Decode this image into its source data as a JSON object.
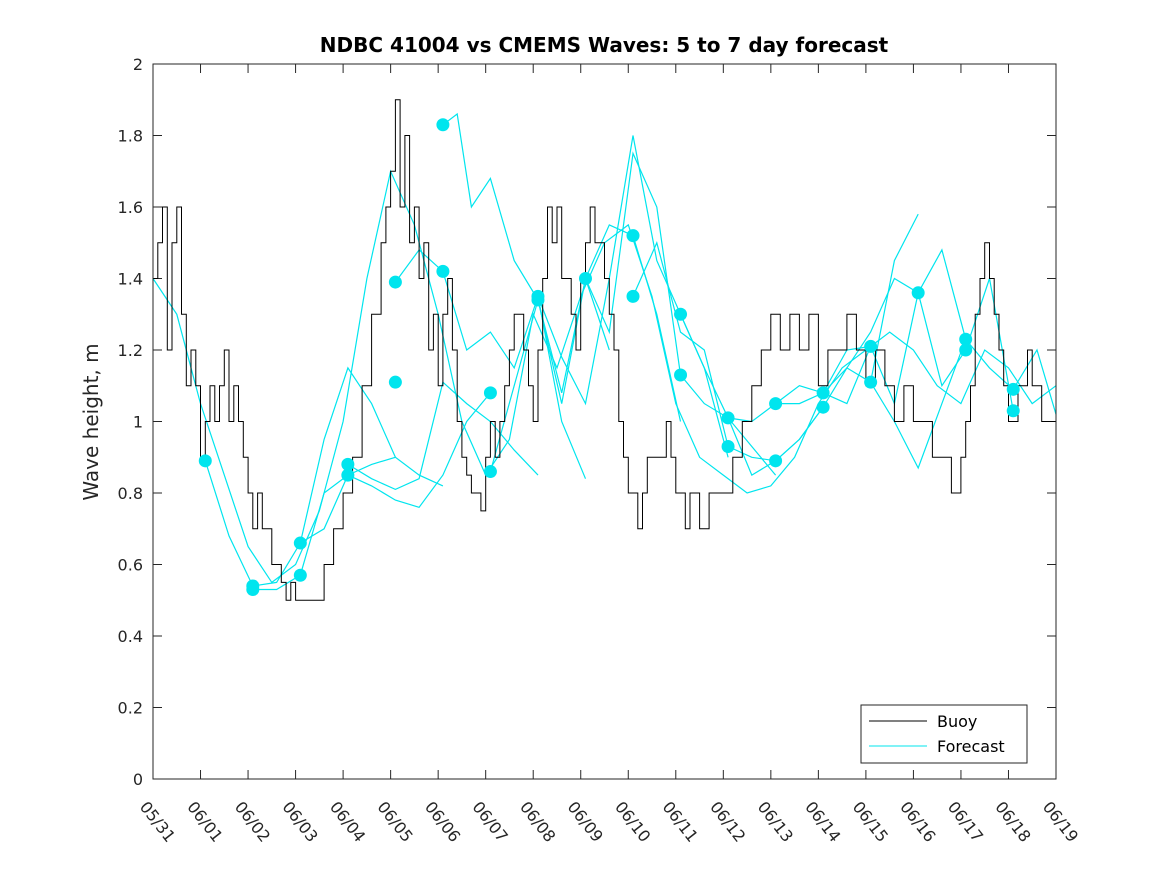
{
  "chart_data": {
    "type": "line",
    "title": "NDBC 41004 vs CMEMS Waves: 5 to 7 day forecast",
    "xlabel": "",
    "ylabel": "Wave height, m",
    "xlim": [
      0,
      19
    ],
    "ylim": [
      0,
      2
    ],
    "x_tick_labels": [
      "05/31",
      "06/01",
      "06/02",
      "06/03",
      "06/04",
      "06/05",
      "06/06",
      "06/07",
      "06/08",
      "06/09",
      "06/10",
      "06/11",
      "06/12",
      "06/13",
      "06/14",
      "06/15",
      "06/16",
      "06/17",
      "06/18",
      "06/19"
    ],
    "y_ticks": [
      0,
      0.2,
      0.4,
      0.6,
      0.8,
      1,
      1.2,
      1.4,
      1.6,
      1.8,
      2
    ],
    "y_tick_labels": [
      "0",
      "0.2",
      "0.4",
      "0.6",
      "0.8",
      "1",
      "1.2",
      "1.4",
      "1.6",
      "1.8",
      "2"
    ],
    "x_unit": "days since 05/31",
    "grid": false,
    "legend_position": "bottom-right",
    "legend": [
      "Buoy",
      "Forecast"
    ],
    "colors": {
      "buoy": "#000000",
      "forecast": "#00e5ee",
      "axis": "#262626"
    },
    "buoy": {
      "name": "Buoy",
      "x": [
        0,
        0.1,
        0.2,
        0.3,
        0.4,
        0.5,
        0.6,
        0.7,
        0.8,
        0.9,
        1.0,
        1.1,
        1.2,
        1.3,
        1.4,
        1.5,
        1.6,
        1.7,
        1.8,
        1.9,
        2.0,
        2.1,
        2.2,
        2.3,
        2.4,
        2.5,
        2.6,
        2.7,
        2.8,
        2.9,
        3.0,
        3.2,
        3.4,
        3.6,
        3.8,
        4.0,
        4.2,
        4.4,
        4.6,
        4.8,
        4.9,
        5.0,
        5.1,
        5.2,
        5.3,
        5.4,
        5.5,
        5.6,
        5.7,
        5.8,
        5.9,
        6.0,
        6.1,
        6.2,
        6.3,
        6.4,
        6.5,
        6.6,
        6.7,
        6.8,
        6.9,
        7.0,
        7.1,
        7.2,
        7.3,
        7.4,
        7.5,
        7.6,
        7.7,
        7.8,
        7.9,
        8.0,
        8.1,
        8.2,
        8.3,
        8.4,
        8.5,
        8.6,
        8.7,
        8.8,
        8.9,
        9.0,
        9.1,
        9.2,
        9.3,
        9.4,
        9.5,
        9.6,
        9.7,
        9.8,
        9.9,
        10.0,
        10.1,
        10.2,
        10.3,
        10.4,
        10.5,
        10.6,
        10.7,
        10.8,
        10.9,
        11.0,
        11.1,
        11.2,
        11.3,
        11.4,
        11.5,
        11.6,
        11.7,
        11.8,
        11.9,
        12.0,
        12.2,
        12.4,
        12.6,
        12.8,
        13.0,
        13.2,
        13.4,
        13.6,
        13.8,
        14.0,
        14.2,
        14.4,
        14.6,
        14.8,
        15.0,
        15.2,
        15.4,
        15.6,
        15.8,
        16.0,
        16.2,
        16.4,
        16.6,
        16.8,
        17.0,
        17.1,
        17.2,
        17.3,
        17.4,
        17.5,
        17.6,
        17.7,
        17.8,
        17.9,
        18.0,
        18.1,
        18.2,
        18.3,
        18.4,
        18.5,
        18.6,
        18.7,
        18.8,
        18.9,
        19.0
      ],
      "y": [
        1.4,
        1.5,
        1.6,
        1.2,
        1.5,
        1.6,
        1.3,
        1.1,
        1.2,
        1.1,
        0.9,
        1.0,
        1.1,
        1.0,
        1.1,
        1.2,
        1.0,
        1.1,
        1.0,
        0.9,
        0.8,
        0.7,
        0.8,
        0.7,
        0.7,
        0.6,
        0.6,
        0.55,
        0.5,
        0.55,
        0.5,
        0.5,
        0.5,
        0.6,
        0.7,
        0.8,
        0.9,
        1.1,
        1.3,
        1.5,
        1.6,
        1.7,
        1.9,
        1.6,
        1.8,
        1.5,
        1.6,
        1.4,
        1.5,
        1.2,
        1.3,
        1.1,
        1.3,
        1.4,
        1.2,
        1.0,
        0.9,
        0.85,
        0.8,
        0.8,
        0.75,
        0.9,
        1.0,
        0.9,
        1.0,
        1.1,
        1.2,
        1.3,
        1.3,
        1.2,
        1.1,
        1.0,
        1.2,
        1.4,
        1.6,
        1.5,
        1.6,
        1.4,
        1.4,
        1.3,
        1.2,
        1.4,
        1.5,
        1.6,
        1.5,
        1.5,
        1.4,
        1.3,
        1.2,
        1.0,
        0.9,
        0.8,
        0.8,
        0.7,
        0.8,
        0.9,
        0.9,
        0.9,
        0.9,
        1.0,
        0.9,
        0.8,
        0.8,
        0.7,
        0.8,
        0.8,
        0.7,
        0.7,
        0.8,
        0.8,
        0.8,
        0.8,
        0.9,
        1.0,
        1.1,
        1.2,
        1.3,
        1.2,
        1.3,
        1.2,
        1.3,
        1.1,
        1.2,
        1.2,
        1.3,
        1.2,
        1.1,
        1.2,
        1.1,
        1.0,
        1.1,
        1.0,
        1.0,
        0.9,
        0.9,
        0.8,
        0.9,
        1.0,
        1.1,
        1.3,
        1.4,
        1.5,
        1.4,
        1.3,
        1.2,
        1.1,
        1.0,
        1.0,
        1.1,
        1.1,
        1.2,
        1.1,
        1.1,
        1.0,
        1.0,
        1.0,
        1.0
      ]
    },
    "forecast": [
      {
        "name": "Forecast",
        "x": [
          0,
          0.5,
          1.0,
          1.5,
          2.0,
          2.5,
          3.0,
          3.5,
          4.0,
          4.5,
          5.0,
          5.5,
          6.0,
          6.5,
          7.0,
          7.5,
          8.0,
          8.5,
          9.0,
          9.5,
          10.0,
          10.5,
          11.0,
          11.5,
          12.0,
          12.5,
          13.0,
          13.5,
          14.0,
          14.5,
          15.0,
          15.5,
          16.0,
          16.5,
          17.0,
          17.5,
          18.0,
          18.5,
          19.0
        ],
        "y": [
          1.4,
          1.3,
          1.05,
          0.85,
          0.65,
          0.55,
          0.6,
          0.75,
          1.0,
          1.4,
          1.7,
          1.55,
          1.3,
          1.0,
          0.85,
          0.95,
          1.3,
          1.15,
          1.35,
          1.5,
          1.55,
          1.35,
          1.05,
          0.9,
          0.85,
          0.8,
          0.82,
          0.9,
          1.05,
          1.15,
          1.2,
          1.25,
          1.2,
          1.1,
          1.05,
          1.2,
          1.15,
          1.05,
          1.1
        ]
      },
      {
        "name": "Forecast",
        "x": [
          1.1,
          1.6,
          2.1,
          2.6,
          3.1,
          3.6,
          4.1,
          4.6,
          5.1
        ],
        "y": [
          0.89,
          0.68,
          0.54,
          0.55,
          0.66,
          0.95,
          1.15,
          1.05,
          0.9
        ]
      },
      {
        "name": "Forecast",
        "x": [
          2.1,
          2.6,
          3.1,
          3.6,
          4.1,
          4.6,
          5.1,
          5.6,
          6.1
        ],
        "y": [
          0.53,
          0.53,
          0.57,
          0.8,
          0.85,
          0.88,
          0.9,
          0.85,
          0.82
        ]
      },
      {
        "name": "Forecast",
        "x": [
          3.1,
          3.6,
          4.1,
          4.6,
          5.1,
          5.6,
          6.1,
          6.6,
          7.1
        ],
        "y": [
          0.66,
          0.7,
          0.85,
          0.82,
          0.78,
          0.76,
          0.85,
          1.0,
          1.08
        ]
      },
      {
        "name": "Forecast",
        "x": [
          4.1,
          4.6,
          5.1,
          5.6,
          6.1,
          6.6,
          7.1,
          7.6,
          8.1
        ],
        "y": [
          0.88,
          0.84,
          0.81,
          0.84,
          1.11,
          1.05,
          1.0,
          0.92,
          0.85
        ]
      },
      {
        "name": "Forecast",
        "x": [
          5.1,
          5.6,
          6.1,
          6.6,
          7.1,
          7.6,
          8.1,
          8.6,
          9.1
        ],
        "y": [
          1.39,
          1.48,
          1.42,
          1.2,
          1.25,
          1.15,
          1.35,
          1.0,
          0.84
        ]
      },
      {
        "name": "Forecast",
        "x": [
          6.1,
          6.4,
          6.7,
          7.1,
          7.6,
          8.1,
          8.6,
          9.1,
          9.6
        ],
        "y": [
          1.83,
          1.86,
          1.6,
          1.68,
          1.45,
          1.34,
          1.05,
          1.4,
          1.2
        ]
      },
      {
        "name": "Forecast",
        "x": [
          7.1,
          7.6,
          8.1,
          8.6,
          9.1,
          9.6,
          10.1,
          10.6,
          11.1
        ],
        "y": [
          0.86,
          1.1,
          1.34,
          1.08,
          1.4,
          1.55,
          1.52,
          1.3,
          1.0
        ]
      },
      {
        "name": "Forecast",
        "x": [
          8.1,
          8.6,
          9.1,
          9.6,
          10.1,
          10.6,
          11.1,
          11.6,
          12.1
        ],
        "y": [
          1.35,
          1.18,
          1.05,
          1.4,
          1.8,
          1.45,
          1.3,
          1.15,
          0.9
        ]
      },
      {
        "name": "Forecast",
        "x": [
          9.1,
          9.6,
          10.1,
          10.6,
          11.1,
          11.6,
          12.1,
          12.6,
          13.1
        ],
        "y": [
          1.4,
          1.25,
          1.75,
          1.6,
          1.13,
          1.05,
          1.01,
          0.93,
          0.85
        ]
      },
      {
        "name": "Forecast",
        "x": [
          10.1,
          10.6,
          11.1,
          11.6,
          12.1,
          12.6,
          13.1,
          13.6,
          14.1
        ],
        "y": [
          1.35,
          1.5,
          1.25,
          1.2,
          0.93,
          0.9,
          0.89,
          0.95,
          1.04
        ]
      },
      {
        "name": "Forecast",
        "x": [
          11.1,
          11.6,
          12.1,
          12.6,
          13.1,
          13.6,
          14.1,
          14.6,
          15.1
        ],
        "y": [
          1.3,
          1.15,
          1.01,
          1.0,
          1.05,
          1.1,
          1.08,
          1.2,
          1.21
        ]
      },
      {
        "name": "Forecast",
        "x": [
          12.1,
          12.6,
          13.1,
          13.6,
          14.1,
          14.6,
          15.1,
          15.6,
          16.1
        ],
        "y": [
          1.01,
          0.85,
          0.89,
          0.95,
          1.04,
          1.15,
          1.11,
          1.45,
          1.58
        ]
      },
      {
        "name": "Forecast",
        "x": [
          13.1,
          13.6,
          14.1,
          14.6,
          15.1,
          15.6,
          16.1,
          16.6,
          17.1
        ],
        "y": [
          1.05,
          1.05,
          1.08,
          1.15,
          1.25,
          1.4,
          1.36,
          1.48,
          1.23
        ]
      },
      {
        "name": "Forecast",
        "x": [
          14.1,
          14.6,
          15.1,
          15.6,
          16.1,
          16.6,
          17.1,
          17.6,
          18.1
        ],
        "y": [
          1.08,
          1.05,
          1.21,
          1.05,
          1.36,
          1.1,
          1.2,
          1.4,
          1.03
        ]
      },
      {
        "name": "Forecast",
        "x": [
          15.1,
          15.6,
          16.1,
          16.6,
          17.1,
          17.6,
          18.1,
          18.6,
          19.0
        ],
        "y": [
          1.11,
          1.0,
          0.87,
          1.05,
          1.23,
          1.15,
          1.09,
          1.2,
          1.02
        ]
      }
    ],
    "forecast_markers": {
      "x": [
        1.1,
        2.1,
        2.1,
        3.1,
        3.1,
        4.1,
        4.1,
        5.1,
        5.1,
        6.1,
        6.1,
        7.1,
        7.1,
        8.1,
        8.1,
        9.1,
        10.1,
        10.1,
        11.1,
        11.1,
        12.1,
        12.1,
        13.1,
        13.1,
        14.1,
        14.1,
        15.1,
        15.1,
        16.1,
        17.1,
        17.1,
        18.1,
        18.1
      ],
      "y": [
        0.89,
        0.54,
        0.53,
        0.66,
        0.57,
        0.88,
        0.85,
        1.39,
        1.11,
        1.83,
        1.42,
        1.08,
        0.86,
        1.35,
        1.34,
        1.4,
        1.52,
        1.35,
        1.3,
        1.13,
        1.01,
        0.93,
        1.05,
        0.89,
        1.08,
        1.04,
        1.21,
        1.11,
        1.36,
        1.23,
        1.2,
        1.09,
        1.03
      ]
    }
  }
}
